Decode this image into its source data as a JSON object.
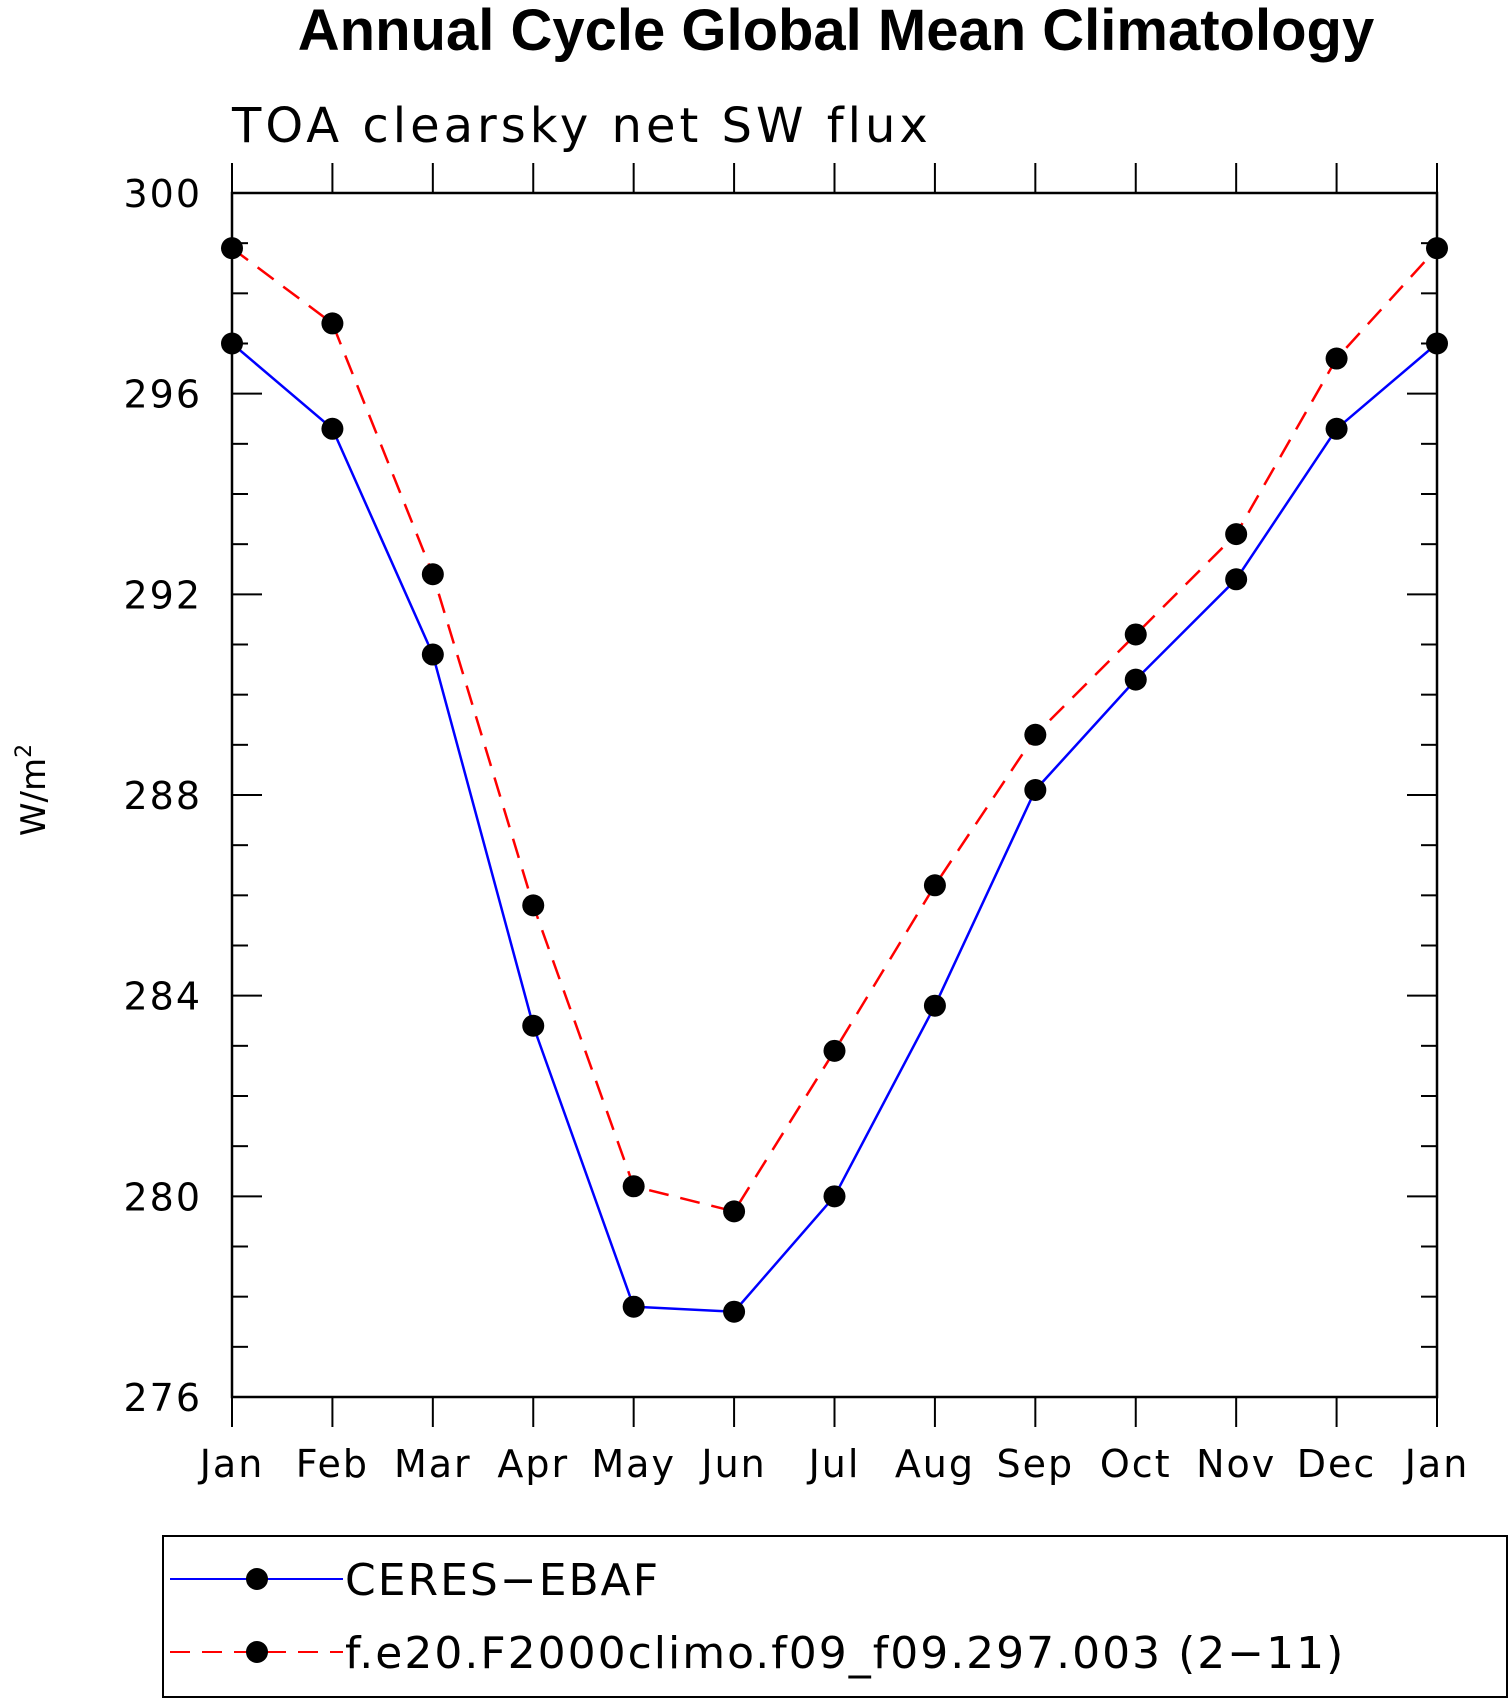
{
  "chart_data": {
    "type": "line",
    "title": "Annual Cycle Global Mean Climatology",
    "subtitle": "TOA clearsky net SW flux",
    "ylabel": "W/m",
    "ylabel_superscript": "2",
    "xlabel": "",
    "categories": [
      "Jan",
      "Feb",
      "Mar",
      "Apr",
      "May",
      "Jun",
      "Jul",
      "Aug",
      "Sep",
      "Oct",
      "Nov",
      "Dec",
      "Jan"
    ],
    "ylim": [
      276,
      300
    ],
    "yticks": [
      276,
      280,
      284,
      288,
      292,
      296,
      300
    ],
    "yminor_step": 1,
    "grid": false,
    "legend_position": "bottom",
    "series": [
      {
        "name": "CERES−EBAF",
        "color": "#0000ff",
        "line_style": "solid",
        "marker": "filled-circle",
        "values": [
          297.0,
          295.3,
          290.8,
          283.4,
          277.8,
          277.7,
          280.0,
          283.8,
          288.1,
          290.3,
          292.3,
          295.3,
          297.0
        ]
      },
      {
        "name": "f.e20.F2000climo.f09_f09.297.003 (2−11)",
        "color": "#ff0000",
        "line_style": "dashed",
        "marker": "filled-circle",
        "values": [
          298.9,
          297.4,
          292.4,
          285.8,
          280.2,
          279.7,
          282.9,
          286.2,
          289.2,
          291.2,
          293.2,
          296.7,
          298.9
        ]
      }
    ]
  }
}
